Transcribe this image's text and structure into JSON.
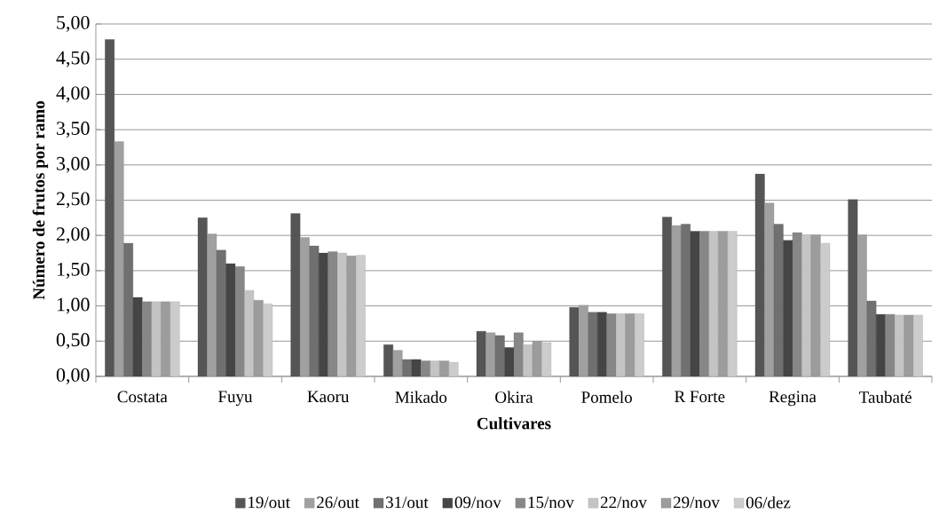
{
  "chart_data": {
    "type": "bar",
    "xlabel": "Cultivares",
    "ylabel": "Número de frutos por ramo",
    "categories": [
      "Costata",
      "Fuyu",
      "Kaoru",
      "Mikado",
      "Okira",
      "Pomelo",
      "R Forte",
      "Regina",
      "Taubaté"
    ],
    "series": [
      {
        "name": "19/out",
        "color": "#555555",
        "values": [
          4.78,
          2.25,
          2.31,
          0.45,
          0.64,
          0.98,
          2.26,
          2.87,
          2.51
        ]
      },
      {
        "name": "26/out",
        "color": "#a0a0a0",
        "values": [
          3.33,
          2.02,
          1.97,
          0.37,
          0.62,
          1.01,
          2.14,
          2.46,
          2.01
        ]
      },
      {
        "name": "31/out",
        "color": "#707070",
        "values": [
          1.89,
          1.79,
          1.85,
          0.24,
          0.58,
          0.91,
          2.16,
          2.16,
          1.07
        ]
      },
      {
        "name": "09/nov",
        "color": "#454545",
        "values": [
          1.12,
          1.6,
          1.75,
          0.24,
          0.41,
          0.91,
          2.06,
          1.93,
          0.88
        ]
      },
      {
        "name": "15/nov",
        "color": "#878787",
        "values": [
          1.06,
          1.56,
          1.77,
          0.22,
          0.62,
          0.89,
          2.06,
          2.04,
          0.88
        ]
      },
      {
        "name": "22/nov",
        "color": "#c4c4c4",
        "values": [
          1.06,
          1.22,
          1.75,
          0.22,
          0.45,
          0.89,
          2.06,
          2.01,
          0.87
        ]
      },
      {
        "name": "29/nov",
        "color": "#9c9c9c",
        "values": [
          1.06,
          1.08,
          1.71,
          0.22,
          0.5,
          0.89,
          2.06,
          2.01,
          0.87
        ]
      },
      {
        "name": "06/dez",
        "color": "#cccccc",
        "values": [
          1.06,
          1.03,
          1.72,
          0.2,
          0.48,
          0.89,
          2.06,
          1.89,
          0.87
        ]
      }
    ],
    "ylim": [
      0,
      5
    ],
    "yticks": [
      {
        "value": 0,
        "label": "0,00"
      },
      {
        "value": 0.5,
        "label": "0,50"
      },
      {
        "value": 1,
        "label": "1,00"
      },
      {
        "value": 1.5,
        "label": "1,50"
      },
      {
        "value": 2,
        "label": "2,00"
      },
      {
        "value": 2.5,
        "label": "2,50"
      },
      {
        "value": 3,
        "label": "3,00"
      },
      {
        "value": 3.5,
        "label": "3,50"
      },
      {
        "value": 4,
        "label": "4,00"
      },
      {
        "value": 4.5,
        "label": "4,50"
      },
      {
        "value": 5,
        "label": "5,00"
      }
    ],
    "grid": "y",
    "legend": "bottom"
  }
}
